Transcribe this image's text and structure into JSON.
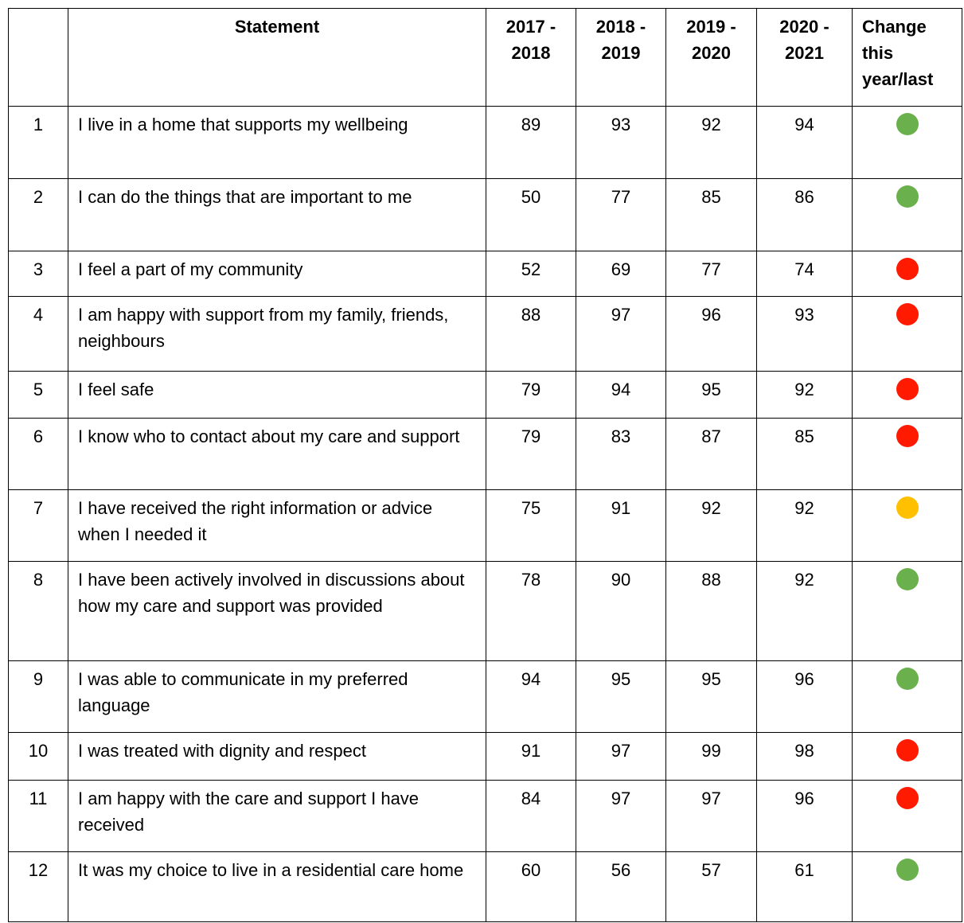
{
  "table": {
    "header": [
      "",
      "Statement",
      "2017 - 2018",
      "2018 - 2019",
      "2019 - 2020",
      "2020 - 2021",
      "Change this year/last"
    ],
    "rows": [
      [
        "1",
        "I live in a home that supports my wellbeing",
        "89",
        "93",
        "92",
        "94"
      ],
      [
        "2",
        "I can do the things that are important to me",
        "50",
        "77",
        "85",
        "86"
      ],
      [
        "3",
        "I feel a part of my community",
        "52",
        "69",
        "77",
        "74"
      ],
      [
        "4",
        "I am happy with support from my family, friends, neighbours",
        "88",
        "97",
        "96",
        "93"
      ],
      [
        "5",
        "I feel safe",
        "79",
        "94",
        "95",
        "92"
      ],
      [
        "6",
        "I know who to contact about my care and support",
        "79",
        "83",
        "87",
        "85"
      ],
      [
        "7",
        "I have received the right information or advice when I needed it",
        "75",
        "91",
        "92",
        "92"
      ],
      [
        "8",
        "I have been actively involved in discussions about how my care and support was provided",
        "78",
        "90",
        "88",
        "92"
      ],
      [
        "9",
        "I was able to communicate in my preferred language",
        "94",
        "95",
        "95",
        "96"
      ],
      [
        "10",
        "I was treated with dignity and respect",
        "91",
        "97",
        "99",
        "98"
      ],
      [
        "11",
        "I am happy with the care and support I have received",
        "84",
        "97",
        "97",
        "96"
      ],
      [
        "12",
        "It was my choice to live in a residential care home",
        "60",
        "56",
        "57",
        "61"
      ]
    ],
    "change_colors": [
      "#6ab04c",
      "#6ab04c",
      "#ff1a00",
      "#ff1a00",
      "#ff1a00",
      "#ff1a00",
      "#ffc000",
      "#6ab04c",
      "#6ab04c",
      "#ff1a00",
      "#ff1a00",
      "#6ab04c"
    ]
  }
}
